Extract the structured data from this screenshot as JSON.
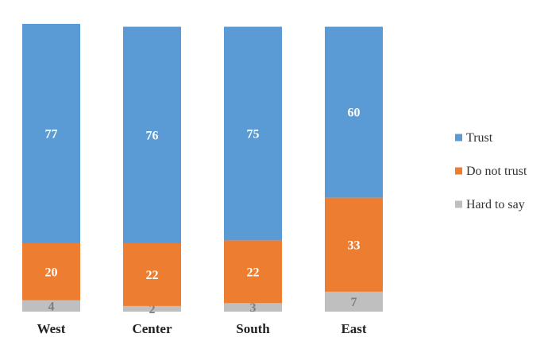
{
  "chart_data": {
    "type": "bar",
    "stacked": true,
    "categories": [
      "West",
      "Center",
      "South",
      "East"
    ],
    "series": [
      {
        "name": "Hard to say",
        "values": [
          4,
          2,
          3,
          7
        ],
        "color": "#bfbfbf",
        "label_color": "#7f7f7f"
      },
      {
        "name": "Do not trust",
        "values": [
          20,
          22,
          22,
          33
        ],
        "color": "#ed7d31",
        "label_color": "#ffffff"
      },
      {
        "name": "Trust",
        "values": [
          77,
          76,
          75,
          60
        ],
        "color": "#5b9bd5",
        "label_color": "#ffffff"
      }
    ],
    "legend_order": [
      "Trust",
      "Do not trust",
      "Hard to say"
    ],
    "legend_position": "right",
    "ylim": [
      0,
      101
    ],
    "grid": false,
    "title": "",
    "xlabel": "",
    "ylabel": ""
  }
}
